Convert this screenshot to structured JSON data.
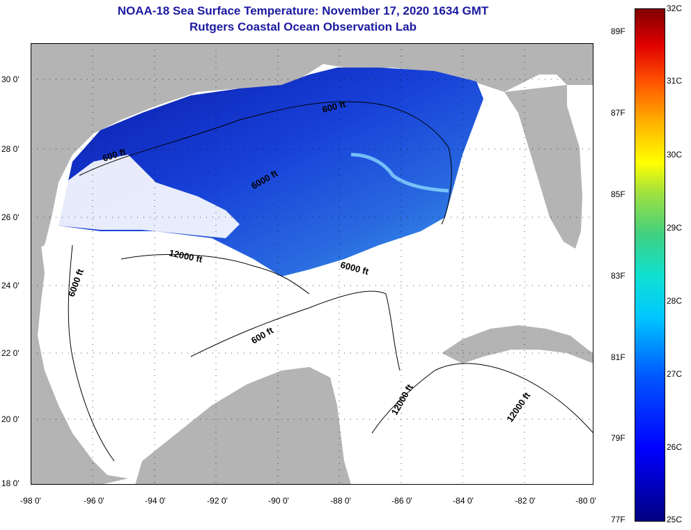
{
  "title": {
    "line1": "NOAA-18 Sea Surface Temperature:  November 17, 2020 1634 GMT",
    "line2": "Rutgers Coastal Ocean Observation Lab"
  },
  "axes": {
    "lat_labels": [
      "30 0'",
      "28 0'",
      "26 0'",
      "24 0'",
      "22 0'",
      "20 0'",
      "18 0'"
    ],
    "lon_labels": [
      "-98 0'",
      "-96 0'",
      "-94 0'",
      "-92 0'",
      "-90 0'",
      "-88 0'",
      "-86 0'",
      "-84 0'",
      "-82 0'",
      "-80 0'"
    ]
  },
  "contour_labels": [
    "600 ft",
    "600 ft",
    "6000 ft",
    "12000 ft",
    "6000 ft",
    "6000 ft",
    "600 ft",
    "12000 ft",
    "12000 ft"
  ],
  "colorbar": {
    "celsius": [
      "32C",
      "31C",
      "30C",
      "29C",
      "28C",
      "27C",
      "26C",
      "25C"
    ],
    "fahrenheit": [
      "89F",
      "87F",
      "85F",
      "83F",
      "81F",
      "79F",
      "77F"
    ],
    "colors": [
      "#00007f",
      "#0000ff",
      "#00c8ff",
      "#ffff00",
      "#ff5000",
      "#800000"
    ]
  }
}
